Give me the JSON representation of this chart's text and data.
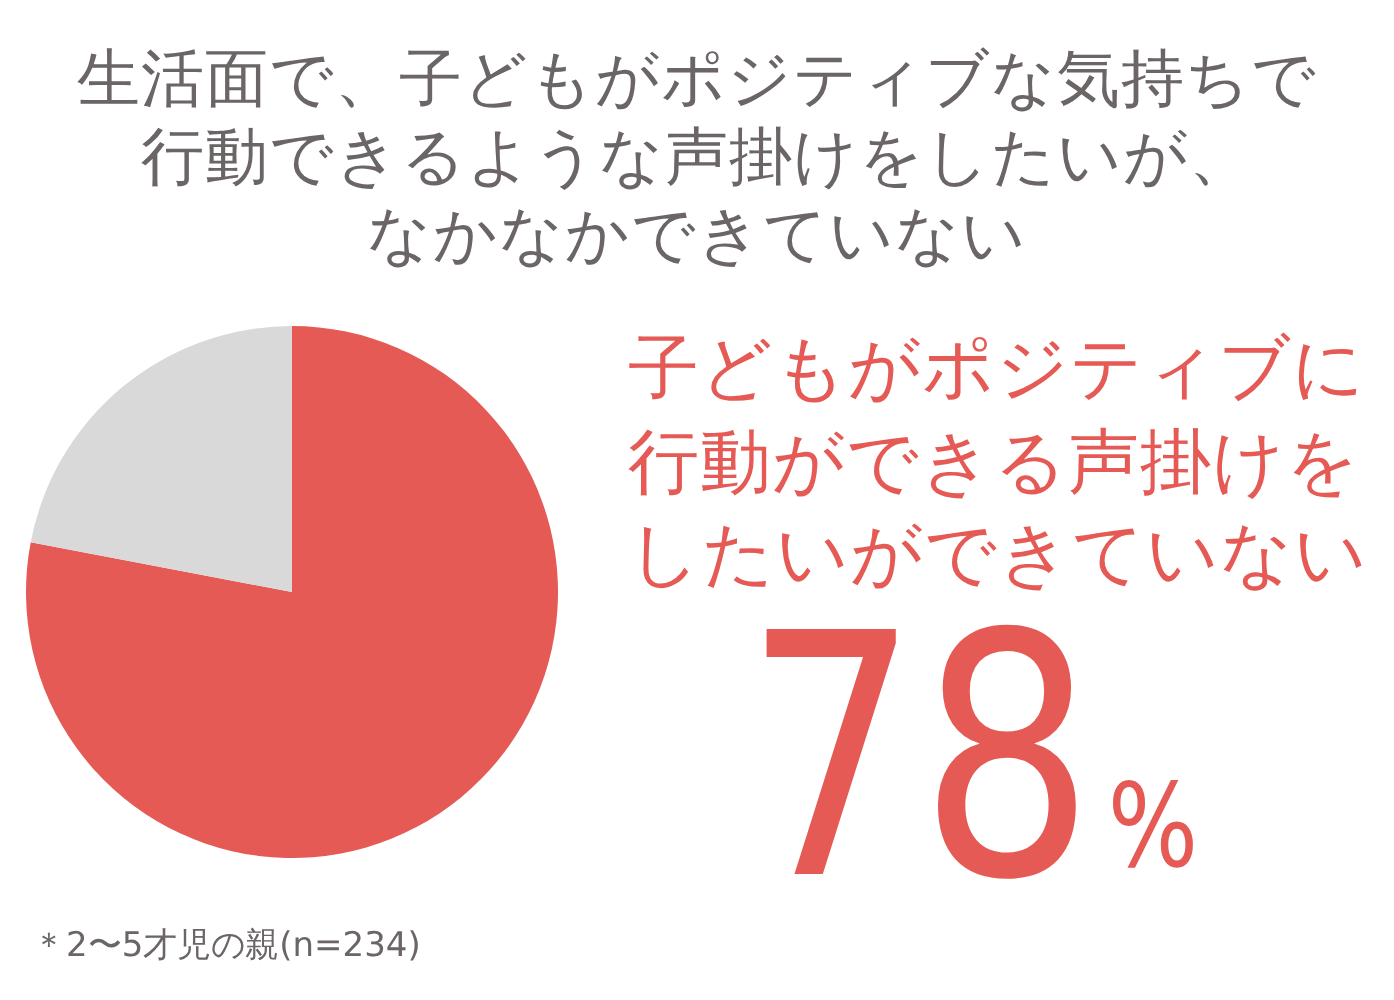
{
  "chart_data": {
    "type": "pie",
    "title": "生活面で、子どもがポジティブな気持ちで行動できるような声掛けをしたいが、なかなかできていない",
    "categories": [
      "子どもがポジティブに行動ができる声掛けをしたいができていない",
      null
    ],
    "values": [
      78,
      22
    ],
    "colors": [
      "#e55a55",
      "#d9d9d9"
    ],
    "value_labels": [
      "78%",
      null
    ],
    "annotations": [
      "＊2〜5才児の親(n=234)"
    ]
  }
}
